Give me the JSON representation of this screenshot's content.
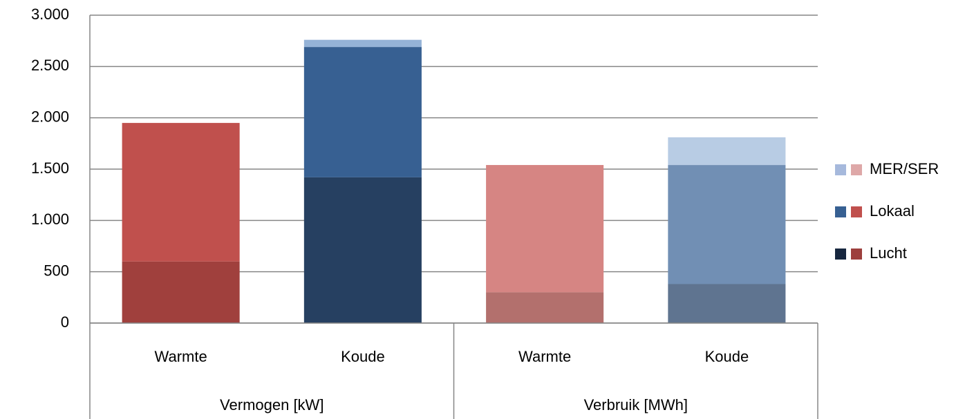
{
  "chart_data": {
    "type": "stacked_bar",
    "categories": [
      "Warmte",
      "Koude",
      "Warmte",
      "Koude"
    ],
    "groups": [
      {
        "name": "Vermogen [kW]",
        "span": 2
      },
      {
        "name": "Verbruik [MWh]",
        "span": 2
      }
    ],
    "series": [
      {
        "name": "Lucht",
        "values": [
          600,
          1420,
          300,
          380
        ],
        "colors": [
          "#a0403d",
          "#264061",
          "#b3706d",
          "#5f7490"
        ],
        "legend_colors": [
          "#17273f",
          "#9d3f3d"
        ]
      },
      {
        "name": "Lokaal",
        "values": [
          1350,
          1270,
          1240,
          1160
        ],
        "colors": [
          "#c0504d",
          "#376092",
          "#d68583",
          "#718fb4"
        ],
        "legend_colors": [
          "#376092",
          "#c0504d"
        ]
      },
      {
        "name": "MER/SER",
        "values": [
          0,
          70,
          0,
          270
        ],
        "colors": [
          "#dea8a8",
          "#95b3d7",
          "#dea8a8",
          "#b8cce4"
        ],
        "legend_colors": [
          "#a6b9dc",
          "#dea8a8"
        ]
      }
    ],
    "ylim": [
      0,
      3000
    ],
    "yticks": [
      0,
      500,
      {
        "value": 1000,
        "label": "1.000"
      },
      {
        "value": 1500,
        "label": "1.500"
      },
      {
        "value": 2000,
        "label": "2.000"
      },
      {
        "value": 2500,
        "label": "2.500"
      },
      {
        "value": 3000,
        "label": "3.000"
      }
    ],
    "grid": true,
    "legend": "right"
  }
}
